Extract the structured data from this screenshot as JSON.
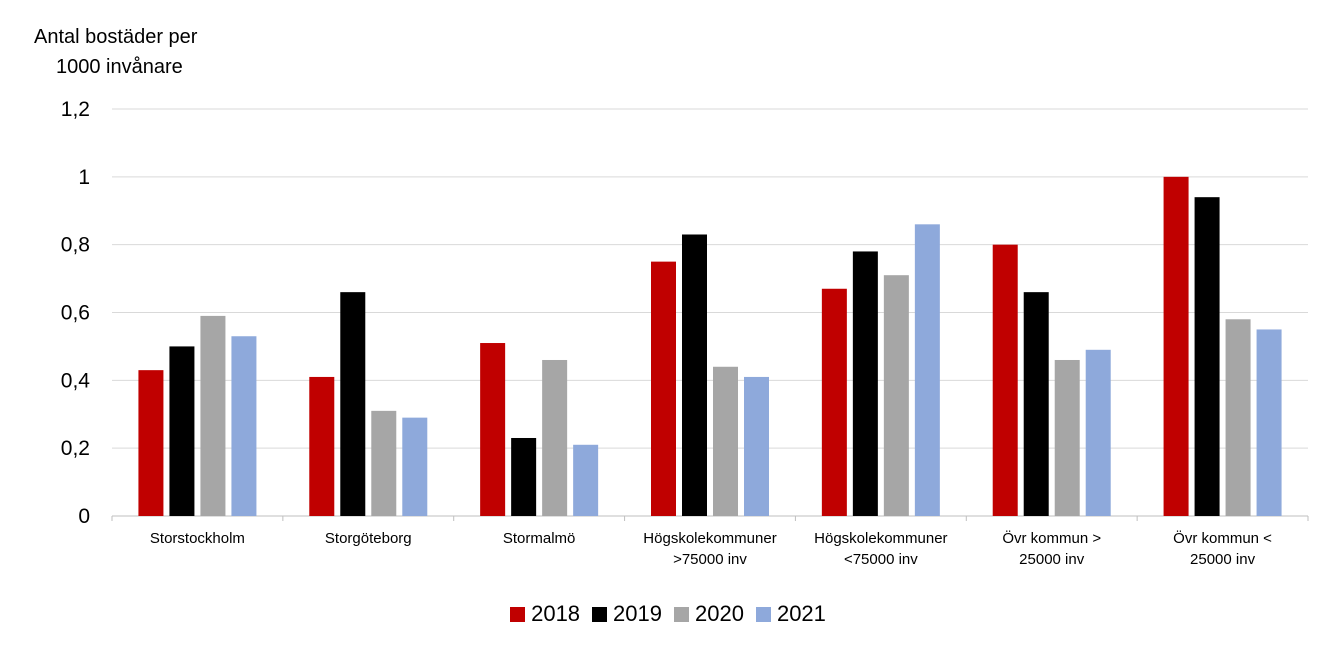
{
  "chart_data": {
    "type": "bar",
    "ylabel_line1": "Antal bostäder per",
    "ylabel_line2": "1000 invånare",
    "xlabel": "",
    "ylim": [
      0,
      1.2
    ],
    "yticks": [
      {
        "value": 0,
        "label": "0"
      },
      {
        "value": 0.2,
        "label": "0,2"
      },
      {
        "value": 0.4,
        "label": "0,4"
      },
      {
        "value": 0.6,
        "label": "0,6"
      },
      {
        "value": 0.8,
        "label": "0,8"
      },
      {
        "value": 1.0,
        "label": "1"
      },
      {
        "value": 1.2,
        "label": "1,2"
      }
    ],
    "grid": true,
    "legend_position": "bottom",
    "categories": [
      [
        "Storstockholm"
      ],
      [
        "Storgöteborg"
      ],
      [
        "Stormalmö"
      ],
      [
        "Högskolekommuner",
        ">75000 inv"
      ],
      [
        "Högskolekommuner",
        "<75000 inv"
      ],
      [
        "Övr kommun >",
        "25000 inv"
      ],
      [
        "Övr kommun <",
        "25000 inv"
      ]
    ],
    "series": [
      {
        "name": "2018",
        "color": "#C00000",
        "values": [
          0.43,
          0.41,
          0.51,
          0.75,
          0.67,
          0.8,
          1.0
        ]
      },
      {
        "name": "2019",
        "color": "#000000",
        "values": [
          0.5,
          0.66,
          0.23,
          0.83,
          0.78,
          0.66,
          0.94
        ]
      },
      {
        "name": "2020",
        "color": "#A6A6A6",
        "values": [
          0.59,
          0.31,
          0.46,
          0.44,
          0.71,
          0.46,
          0.58
        ]
      },
      {
        "name": "2021",
        "color": "#8EA9DB",
        "values": [
          0.53,
          0.29,
          0.21,
          0.41,
          0.86,
          0.49,
          0.55
        ]
      }
    ]
  }
}
